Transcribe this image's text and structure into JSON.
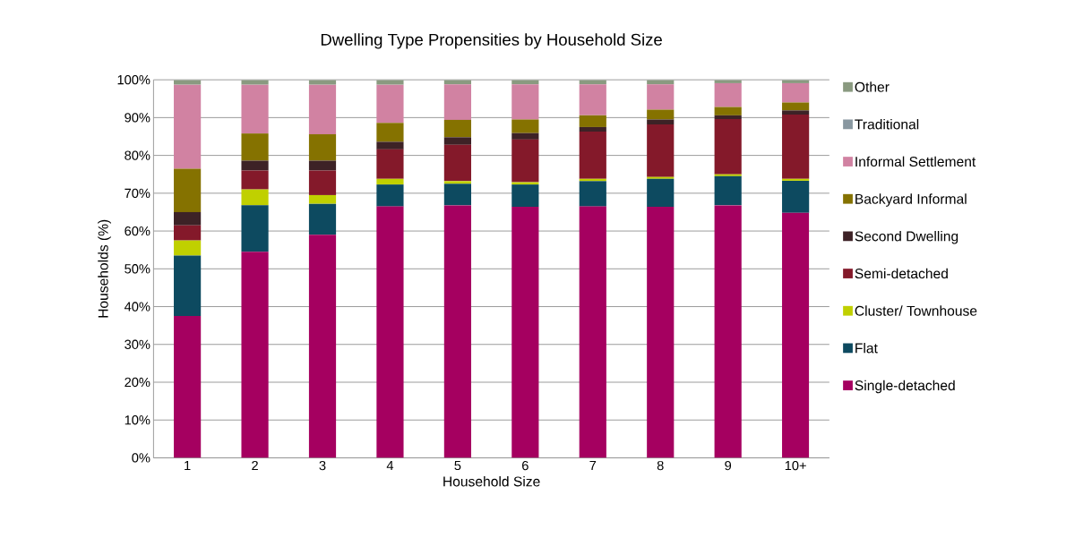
{
  "chart_data": {
    "type": "bar",
    "stacked": true,
    "title": "Dwelling Type Propensities by Household Size",
    "xlabel": "Household Size",
    "ylabel": "Households (%)",
    "categories": [
      "1",
      "2",
      "3",
      "4",
      "5",
      "6",
      "7",
      "8",
      "9",
      "10+"
    ],
    "ylim": [
      0,
      100
    ],
    "yticks": [
      {
        "value": 0,
        "label": "0%"
      },
      {
        "value": 10,
        "label": "10%"
      },
      {
        "value": 20,
        "label": "20%"
      },
      {
        "value": 30,
        "label": "30%"
      },
      {
        "value": 40,
        "label": "40%"
      },
      {
        "value": 50,
        "label": "50%"
      },
      {
        "value": 60,
        "label": "60%"
      },
      {
        "value": 70,
        "label": "70%"
      },
      {
        "value": 80,
        "label": "80%"
      },
      {
        "value": 90,
        "label": "90%"
      },
      {
        "value": 100,
        "label": "100%"
      }
    ],
    "grid": "y",
    "legend": "right",
    "series": [
      {
        "name": "Single-detached",
        "color": "#a50060",
        "values": [
          37.5,
          54.5,
          59,
          66.5,
          66.8,
          66.4,
          66.5,
          66.4,
          66.8,
          64.8
        ]
      },
      {
        "name": "Flat",
        "color": "#0d4a60",
        "values": [
          16,
          12.3,
          8.2,
          5.8,
          5.7,
          5.9,
          6.7,
          7.4,
          7.7,
          8.5
        ]
      },
      {
        "name": "Cluster/ Townhouse",
        "color": "#c0d000",
        "values": [
          4,
          4.2,
          2.3,
          1.5,
          0.7,
          0.6,
          0.6,
          0.5,
          0.5,
          0.5
        ]
      },
      {
        "name": "Semi-detached",
        "color": "#84192a",
        "values": [
          4,
          5,
          6.5,
          7.8,
          9.6,
          11.3,
          12.5,
          13.9,
          14.6,
          17
        ]
      },
      {
        "name": "Second Dwelling",
        "color": "#3d2226",
        "values": [
          3.5,
          2.6,
          2.6,
          2,
          2,
          1.7,
          1.2,
          1.3,
          1,
          1.1
        ]
      },
      {
        "name": "Backyard Informal",
        "color": "#857200",
        "values": [
          11.5,
          7.2,
          7,
          5,
          4.6,
          3.6,
          3.1,
          2.6,
          2.2,
          2.1
        ]
      },
      {
        "name": "Informal Settlement",
        "color": "#d182a2",
        "values": [
          22.2,
          12.9,
          13.1,
          10.1,
          9.4,
          9.3,
          8.2,
          6.7,
          6.3,
          5.1
        ]
      },
      {
        "name": "Traditional",
        "color": "#8897a0",
        "values": [
          null,
          null,
          null,
          null,
          null,
          null,
          null,
          null,
          null,
          null
        ]
      },
      {
        "name": "Other",
        "color": "#8a9a80",
        "values": [
          1.2,
          1.2,
          1.2,
          1.2,
          1.1,
          1.1,
          1.1,
          1.1,
          0.8,
          0.8
        ]
      }
    ]
  }
}
